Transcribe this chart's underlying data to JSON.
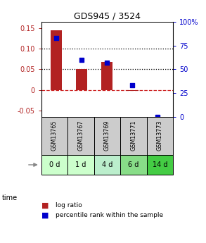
{
  "title": "GDS945 / 3524",
  "samples": [
    "GSM13765",
    "GSM13767",
    "GSM13769",
    "GSM13771",
    "GSM13773"
  ],
  "time_labels": [
    "0 d",
    "1 d",
    "4 d",
    "6 d",
    "14 d"
  ],
  "log_ratios": [
    0.145,
    0.05,
    0.067,
    -0.002,
    0.0
  ],
  "percentile_ranks": [
    83,
    60,
    57,
    33,
    0
  ],
  "bar_color": "#B22222",
  "dot_color": "#0000CC",
  "ylim_left": [
    -0.065,
    0.165
  ],
  "ylim_right": [
    0,
    100
  ],
  "yticks_left": [
    -0.05,
    0.0,
    0.05,
    0.1,
    0.15
  ],
  "yticks_right": [
    0,
    25,
    50,
    75,
    100
  ],
  "ytick_labels_left": [
    "-0.05",
    "0",
    "0.05",
    "0.10",
    "0.15"
  ],
  "ytick_labels_right": [
    "0",
    "25",
    "50",
    "75",
    "100%"
  ],
  "hline_y": [
    0.05,
    0.1
  ],
  "zero_line_y": 0.0,
  "zero_line_color": "#CC2222",
  "time_row_colors": [
    "#ccffcc",
    "#ccffcc",
    "#bbeecc",
    "#88dd88",
    "#44cc44"
  ],
  "sample_row_color": "#cccccc",
  "background_color": "#ffffff",
  "legend_log_ratio_color": "#B22222",
  "legend_percentile_color": "#0000CC",
  "bar_width": 0.45
}
